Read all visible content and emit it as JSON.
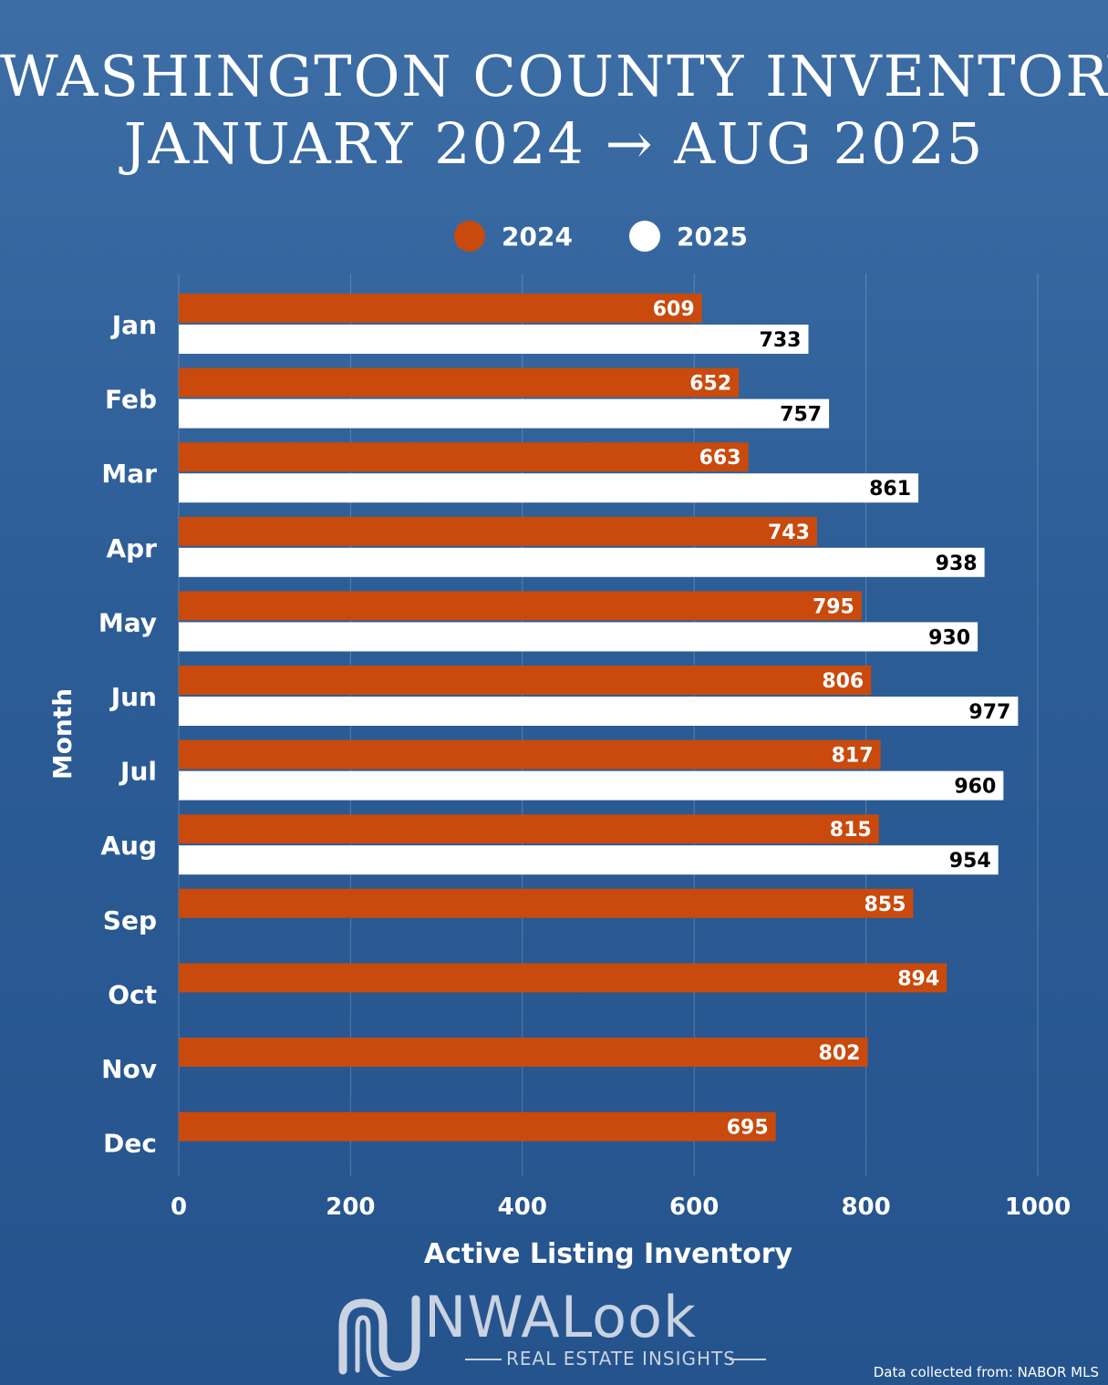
{
  "header": {
    "title_line1": "WASHINGTON COUNTY INVENTORY",
    "title_line2": "JANUARY 2024 → AUG 2025"
  },
  "chart_data": {
    "type": "bar",
    "orientation": "horizontal",
    "categories": [
      "Jan",
      "Feb",
      "Mar",
      "Apr",
      "May",
      "Jun",
      "Jul",
      "Aug",
      "Sep",
      "Oct",
      "Nov",
      "Dec"
    ],
    "series": [
      {
        "name": "2024",
        "color": "#c94a0c",
        "values": [
          609,
          652,
          663,
          743,
          795,
          806,
          817,
          815,
          855,
          894,
          802,
          695
        ]
      },
      {
        "name": "2025",
        "color": "#ffffff",
        "values": [
          733,
          757,
          861,
          938,
          930,
          977,
          960,
          954,
          null,
          null,
          null,
          null
        ]
      }
    ],
    "xlabel": "Active Listing Inventory",
    "ylabel": "Month",
    "xlim": [
      0,
      1000
    ],
    "xticks": [
      0,
      200,
      400,
      600,
      800,
      1000
    ],
    "grid": true,
    "legend_position": "top-center"
  },
  "footer": {
    "logo_name": "NWALook",
    "logo_tagline": "REAL ESTATE INSIGHTS",
    "source": "Data collected from: NABOR MLS"
  }
}
